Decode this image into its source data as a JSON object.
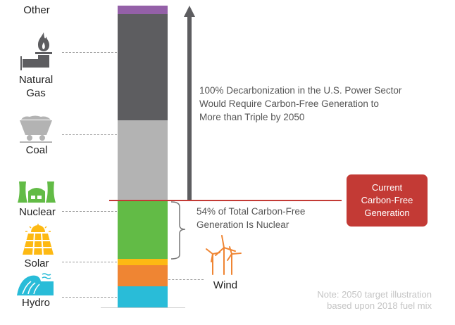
{
  "chart_data": {
    "type": "bar",
    "stacked": true,
    "title": "",
    "xlabel": "",
    "ylabel": "",
    "ylim": [
      0,
      100
    ],
    "unit": "percent of 2018 U.S. generation (approx.)",
    "categories": [
      "Hydro",
      "Wind",
      "Solar",
      "Nuclear",
      "Coal",
      "Natural Gas",
      "Other"
    ],
    "values": [
      7.0,
      7.0,
      2.1,
      19.2,
      26.6,
      35.3,
      2.8
    ],
    "colors": [
      "#29bcd8",
      "#ef8533",
      "#fdb913",
      "#62bb46",
      "#b3b3b3",
      "#5d5d60",
      "#9460a8"
    ],
    "current_carbon_free_share": 35.3,
    "annotations": {
      "arrow": "100% Decarbonization in the U.S. Power Sector Would Require Carbon-Free Generation to More than Triple by 2050",
      "arrow_lines": [
        "100% Decarbonization in the U.S. Power Sector",
        "Would Require Carbon-Free Generation to",
        "More than Triple by 2050"
      ],
      "brace_lines": [
        "54% of Total Carbon-Free",
        "Generation Is Nuclear"
      ],
      "box_lines": [
        "Current",
        "Carbon-Free",
        "Generation"
      ],
      "note_lines": [
        "Note: 2050 target illustration",
        "based upon 2018 fuel mix"
      ]
    },
    "labels": {
      "other": "Other",
      "gas": [
        "Natural",
        "Gas"
      ],
      "coal": "Coal",
      "nuclear": "Nuclear",
      "solar": "Solar",
      "hydro": "Hydro",
      "wind": "Wind"
    }
  }
}
